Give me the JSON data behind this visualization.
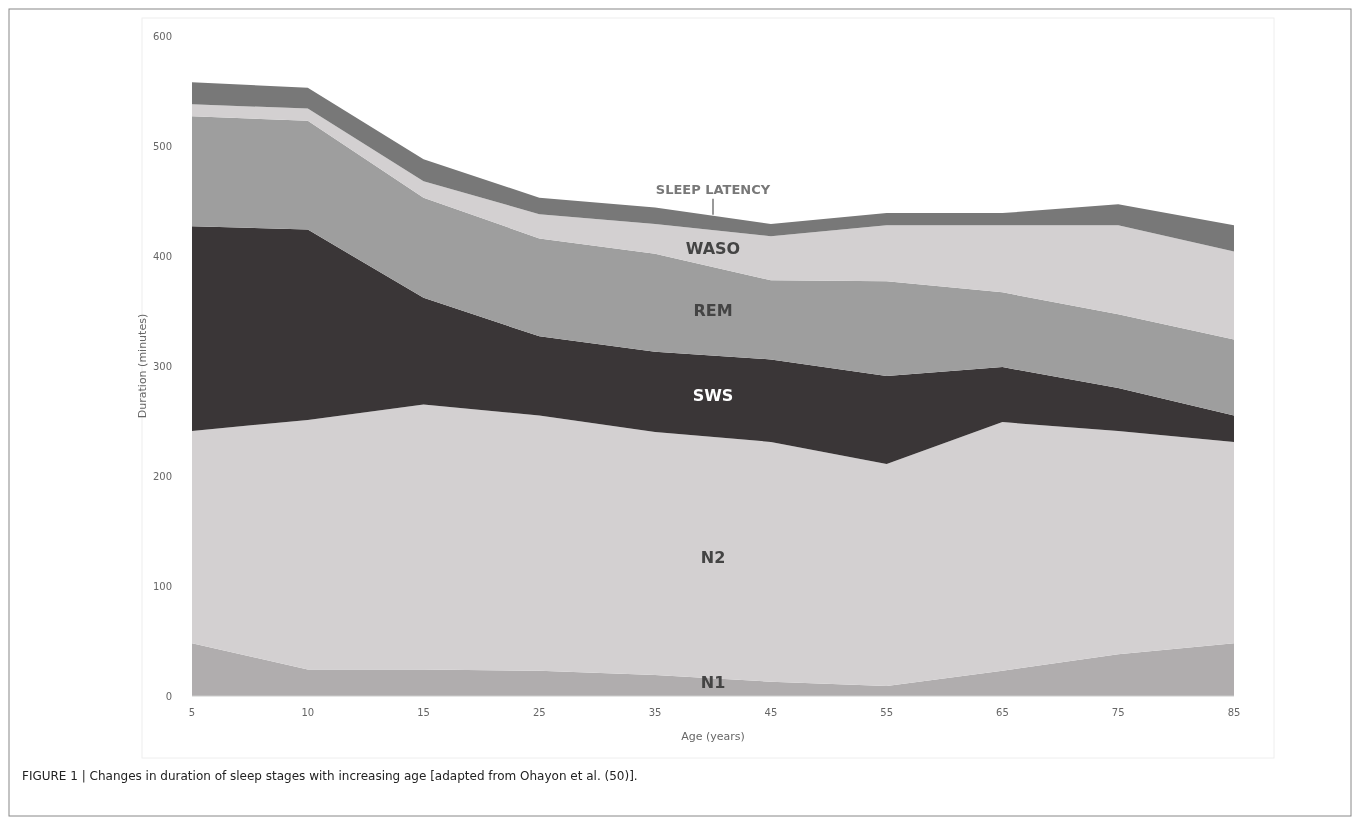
{
  "chart_data": {
    "type": "area",
    "stacked": true,
    "xlabel": "Age (years)",
    "ylabel": "Duration (minutes)",
    "categories": [
      "5",
      "10",
      "15",
      "25",
      "35",
      "45",
      "55",
      "65",
      "75",
      "85"
    ],
    "series": [
      {
        "name": "N1",
        "color": "#b0adae",
        "values": [
          48,
          24,
          24,
          23,
          19,
          13,
          9,
          23,
          38,
          48
        ]
      },
      {
        "name": "N2",
        "color": "#d3d0d1",
        "values": [
          193,
          227,
          241,
          232,
          221,
          218,
          202,
          226,
          203,
          183
        ]
      },
      {
        "name": "SWS",
        "color": "#3a3637",
        "values": [
          186,
          173,
          97,
          72,
          73,
          75,
          80,
          50,
          39,
          24
        ]
      },
      {
        "name": "REM",
        "color": "#9e9e9e",
        "values": [
          100,
          99,
          91,
          89,
          89,
          72,
          86,
          68,
          67,
          69
        ]
      },
      {
        "name": "WASO",
        "color": "#d3d0d1",
        "values": [
          11,
          11,
          15,
          22,
          27,
          40,
          51,
          61,
          81,
          80
        ]
      },
      {
        "name": "SLEEP LATENCY",
        "color": "#787878",
        "values": [
          20,
          19,
          20,
          15,
          15,
          11,
          11,
          11,
          19,
          24
        ]
      }
    ],
    "ylim": [
      0,
      600
    ],
    "yticks": [
      0,
      100,
      200,
      300,
      400,
      500,
      600
    ],
    "grid": false,
    "annotations": [
      "FIGURE 1 | Changes in duration of sleep stages with increasing age [adapted from Ohayon et al. (50)]."
    ]
  }
}
